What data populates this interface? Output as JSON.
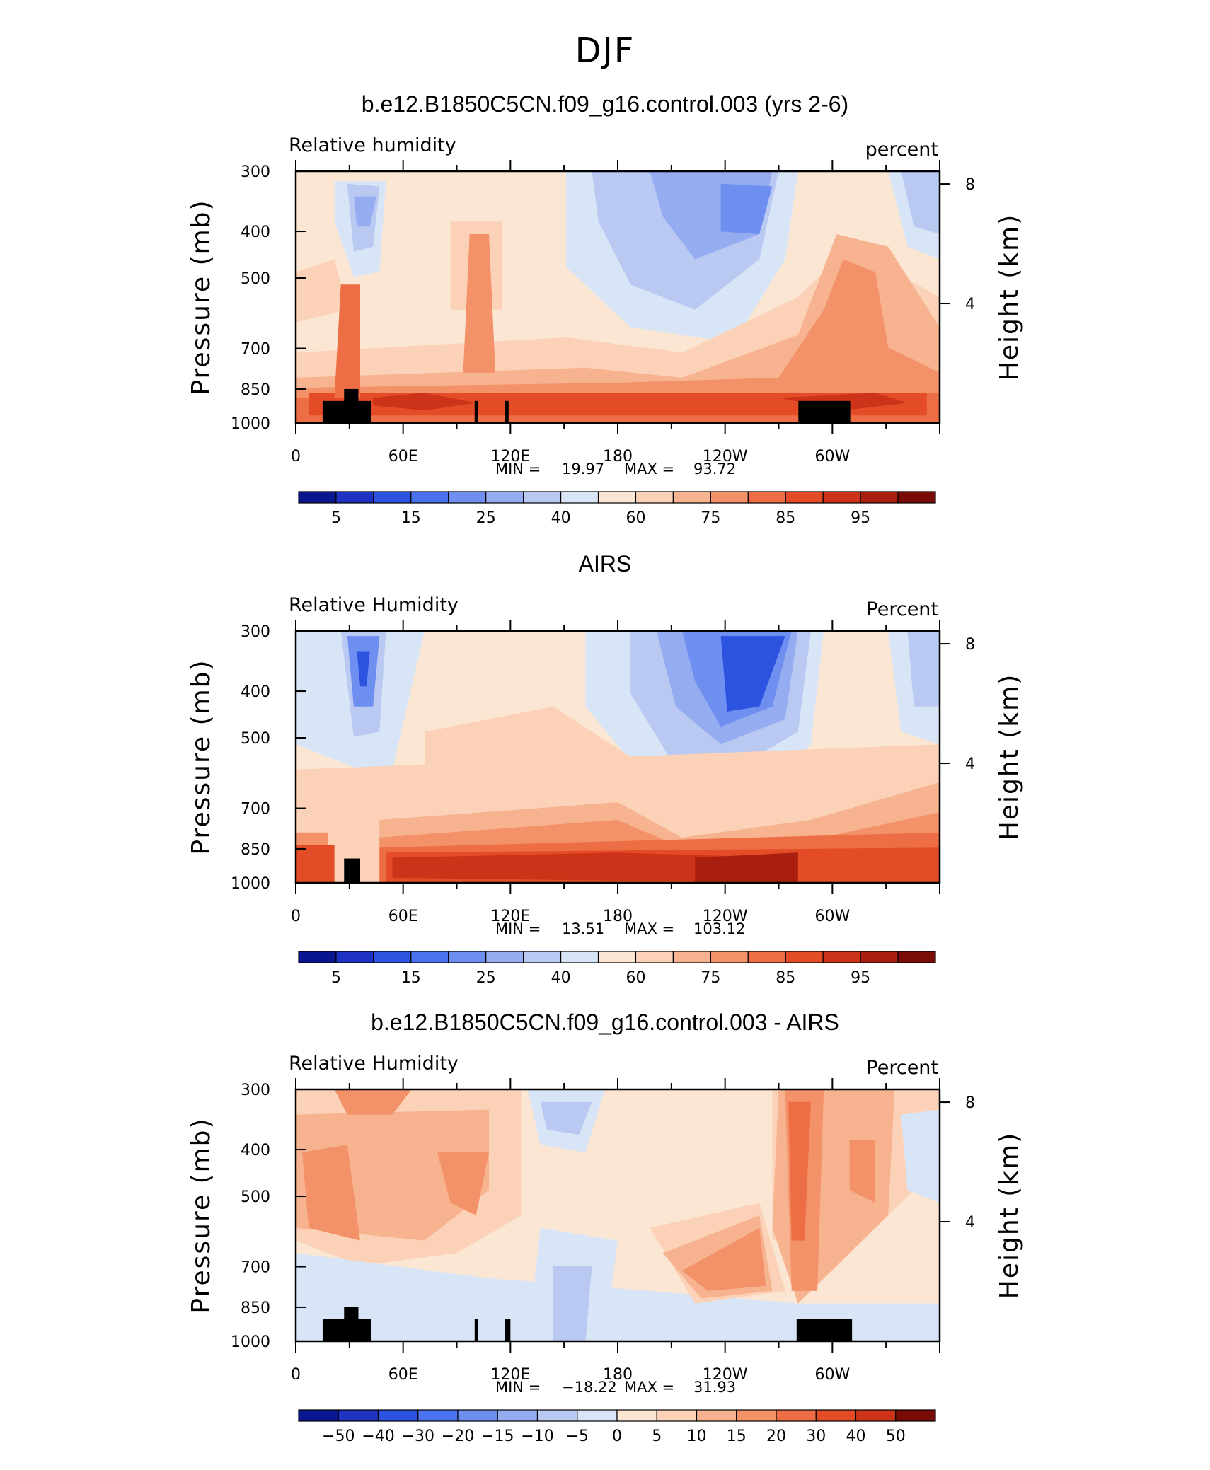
{
  "page_title": "DJF",
  "common": {
    "left_axis_title": "Pressure (mb)",
    "right_axis_title": "Height (km)",
    "y_ticks": [
      "300",
      "400",
      "500",
      "700",
      "850",
      "1000"
    ],
    "y_tick_values": [
      300,
      400,
      500,
      700,
      850,
      1000
    ],
    "height_ticks": [
      "8",
      "4"
    ],
    "height_tick_values": [
      8,
      4
    ],
    "x_ticks": [
      "0",
      "60E",
      "120E",
      "180",
      "120W",
      "60W"
    ],
    "x_tick_values": [
      0,
      60,
      120,
      180,
      240,
      300
    ],
    "min_label": "MIN =",
    "max_label": "MAX ="
  },
  "chart_data": [
    {
      "type": "heatmap",
      "title": "b.e12.B1850C5CN.f09_g16.control.003 (yrs 2-6)",
      "left_label": "Relative humidity",
      "right_label": "percent",
      "min_value": "19.97",
      "max_value": "93.72",
      "xlim": [
        0,
        360
      ],
      "ylim": [
        1000,
        300
      ],
      "colorbar_labels": [
        "5",
        "15",
        "25",
        "40",
        "60",
        "75",
        "85",
        "95"
      ],
      "colors": [
        "#0a1590",
        "#1f33c2",
        "#2c52e0",
        "#4a72ee",
        "#6e8ff0",
        "#95adf0",
        "#b9c9f2",
        "#d8e5f7",
        "#fbe6d4",
        "#fbd2b8",
        "#f7b38f",
        "#f39169",
        "#ed6e44",
        "#e34c26",
        "#cc3318",
        "#a81f10",
        "#7a0c06"
      ]
    },
    {
      "type": "heatmap",
      "title": "AIRS",
      "left_label": "Relative Humidity",
      "right_label": "Percent",
      "min_value": "13.51",
      "max_value": "103.12",
      "xlim": [
        0,
        360
      ],
      "ylim": [
        1000,
        300
      ],
      "colorbar_labels": [
        "5",
        "15",
        "25",
        "40",
        "60",
        "75",
        "85",
        "95"
      ],
      "colors": [
        "#0a1590",
        "#1f33c2",
        "#2c52e0",
        "#4a72ee",
        "#6e8ff0",
        "#95adf0",
        "#b9c9f2",
        "#d8e5f7",
        "#fbe6d4",
        "#fbd2b8",
        "#f7b38f",
        "#f39169",
        "#ed6e44",
        "#e34c26",
        "#cc3318",
        "#a81f10",
        "#7a0c06"
      ]
    },
    {
      "type": "heatmap",
      "title": "b.e12.B1850C5CN.f09_g16.control.003 - AIRS",
      "left_label": "Relative Humidity",
      "right_label": "Percent",
      "min_value": "−18.22",
      "max_value": "31.93",
      "xlim": [
        0,
        360
      ],
      "ylim": [
        1000,
        300
      ],
      "colorbar_labels": [
        "−50",
        "−40",
        "−30",
        "−20",
        "−15",
        "−10",
        "−5",
        "0",
        "5",
        "10",
        "15",
        "20",
        "30",
        "40",
        "50"
      ],
      "colors": [
        "#0a1590",
        "#1f33c2",
        "#2c52e0",
        "#4a72ee",
        "#6e8ff0",
        "#95adf0",
        "#b9c9f2",
        "#d8e5f7",
        "#fbe6d4",
        "#fbd2b8",
        "#f7b38f",
        "#f39169",
        "#ed6e44",
        "#e34c26",
        "#cc3318",
        "#7a0c06"
      ]
    }
  ]
}
